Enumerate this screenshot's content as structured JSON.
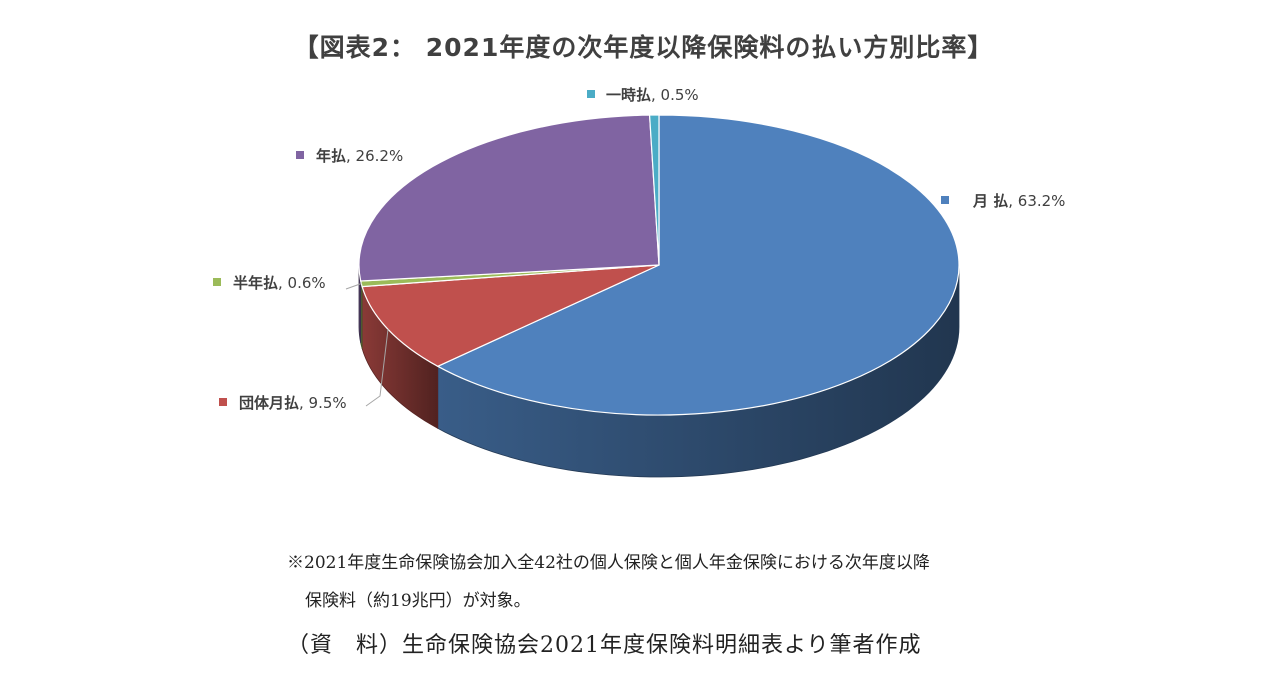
{
  "chart_data": {
    "type": "pie",
    "title": "【図表2： 2021年度の次年度以降保険料の払い方別比率】",
    "slices": [
      {
        "label": "月 払",
        "value": 63.2,
        "value_label": "63.2%",
        "color": "#4f81bd"
      },
      {
        "label": "団体月払",
        "value": 9.5,
        "value_label": "9.5%",
        "color": "#c0504d"
      },
      {
        "label": "半年払",
        "value": 0.6,
        "value_label": "0.6%",
        "color": "#9bbb59"
      },
      {
        "label": "年払",
        "value": 26.2,
        "value_label": "26.2%",
        "color": "#8064a2"
      },
      {
        "label": "一時払",
        "value": 0.5,
        "value_label": "0.5%",
        "color": "#4bacc6"
      }
    ],
    "three_d": true
  },
  "notes": {
    "line1": "※2021年度生命保険協会加入全42社の個人保険と個人年金保険における次年度以降",
    "line2": "保険料（約19兆円）が対象。",
    "source": "（資　料）生命保険協会2021年度保険料明細表より筆者作成"
  }
}
